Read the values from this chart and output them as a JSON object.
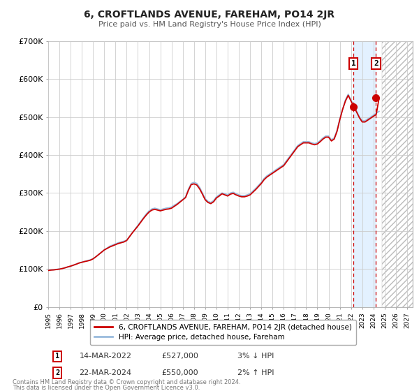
{
  "title": "6, CROFTLANDS AVENUE, FAREHAM, PO14 2JR",
  "subtitle": "Price paid vs. HM Land Registry's House Price Index (HPI)",
  "ylim": [
    0,
    700000
  ],
  "yticks": [
    0,
    100000,
    200000,
    300000,
    400000,
    500000,
    600000,
    700000
  ],
  "ytick_labels": [
    "£0",
    "£100K",
    "£200K",
    "£300K",
    "£400K",
    "£500K",
    "£600K",
    "£700K"
  ],
  "xlim_start": 1995.0,
  "xlim_end": 2027.5,
  "sale1_x": 2022.21,
  "sale1_y": 527000,
  "sale2_x": 2024.23,
  "sale2_y": 550000,
  "vline1_x": 2022.21,
  "vline2_x": 2024.23,
  "shade_start": 2022.21,
  "shade_end": 2024.23,
  "hatch_start": 2024.75,
  "hatch_end": 2027.5,
  "line_color_sale": "#cc0000",
  "line_color_hpi": "#99bbdd",
  "dot_color": "#cc0000",
  "shade_color": "#ddeeff",
  "vline_color": "#cc0000",
  "legend1_label": "6, CROFTLANDS AVENUE, FAREHAM, PO14 2JR (detached house)",
  "legend2_label": "HPI: Average price, detached house, Fareham",
  "table_row1": [
    "1",
    "14-MAR-2022",
    "£527,000",
    "3% ↓ HPI"
  ],
  "table_row2": [
    "2",
    "22-MAR-2024",
    "£550,000",
    "2% ↑ HPI"
  ],
  "footnote1": "Contains HM Land Registry data © Crown copyright and database right 2024.",
  "footnote2": "This data is licensed under the Open Government Licence v3.0.",
  "background_color": "#ffffff",
  "grid_color": "#cccccc",
  "hpi_data_x": [
    1995.0,
    1995.25,
    1995.5,
    1995.75,
    1996.0,
    1996.25,
    1996.5,
    1996.75,
    1997.0,
    1997.25,
    1997.5,
    1997.75,
    1998.0,
    1998.25,
    1998.5,
    1998.75,
    1999.0,
    1999.25,
    1999.5,
    1999.75,
    2000.0,
    2000.25,
    2000.5,
    2000.75,
    2001.0,
    2001.25,
    2001.5,
    2001.75,
    2002.0,
    2002.25,
    2002.5,
    2002.75,
    2003.0,
    2003.25,
    2003.5,
    2003.75,
    2004.0,
    2004.25,
    2004.5,
    2004.75,
    2005.0,
    2005.25,
    2005.5,
    2005.75,
    2006.0,
    2006.25,
    2006.5,
    2006.75,
    2007.0,
    2007.25,
    2007.5,
    2007.75,
    2008.0,
    2008.25,
    2008.5,
    2008.75,
    2009.0,
    2009.25,
    2009.5,
    2009.75,
    2010.0,
    2010.25,
    2010.5,
    2010.75,
    2011.0,
    2011.25,
    2011.5,
    2011.75,
    2012.0,
    2012.25,
    2012.5,
    2012.75,
    2013.0,
    2013.25,
    2013.5,
    2013.75,
    2014.0,
    2014.25,
    2014.5,
    2014.75,
    2015.0,
    2015.25,
    2015.5,
    2015.75,
    2016.0,
    2016.25,
    2016.5,
    2016.75,
    2017.0,
    2017.25,
    2017.5,
    2017.75,
    2018.0,
    2018.25,
    2018.5,
    2018.75,
    2019.0,
    2019.25,
    2019.5,
    2019.75,
    2020.0,
    2020.25,
    2020.5,
    2020.75,
    2021.0,
    2021.25,
    2021.5,
    2021.75,
    2022.0,
    2022.25,
    2022.5,
    2022.75,
    2023.0,
    2023.25,
    2023.5,
    2023.75,
    2024.0,
    2024.25,
    2024.5
  ],
  "hpi_data_y": [
    97000,
    97500,
    98000,
    99000,
    100000,
    101000,
    103000,
    105000,
    107000,
    110000,
    113000,
    116000,
    118000,
    120000,
    122000,
    124000,
    127000,
    132000,
    138000,
    144000,
    150000,
    155000,
    160000,
    163000,
    166000,
    169000,
    171000,
    173000,
    176000,
    185000,
    195000,
    205000,
    215000,
    225000,
    235000,
    245000,
    253000,
    258000,
    260000,
    258000,
    256000,
    258000,
    260000,
    261000,
    263000,
    268000,
    272000,
    278000,
    283000,
    290000,
    310000,
    325000,
    328000,
    325000,
    315000,
    300000,
    285000,
    278000,
    275000,
    280000,
    290000,
    295000,
    300000,
    298000,
    295000,
    300000,
    302000,
    298000,
    295000,
    293000,
    293000,
    295000,
    298000,
    305000,
    312000,
    320000,
    328000,
    338000,
    345000,
    350000,
    355000,
    360000,
    365000,
    370000,
    375000,
    385000,
    395000,
    405000,
    415000,
    425000,
    430000,
    435000,
    435000,
    435000,
    432000,
    430000,
    432000,
    438000,
    445000,
    450000,
    450000,
    440000,
    445000,
    465000,
    495000,
    520000,
    545000,
    560000,
    545000,
    530000,
    515000,
    500000,
    490000,
    490000,
    495000,
    500000,
    505000,
    510000,
    515000
  ],
  "sale_line_data_x": [
    1995.0,
    1995.25,
    1995.5,
    1995.75,
    1996.0,
    1996.25,
    1996.5,
    1996.75,
    1997.0,
    1997.25,
    1997.5,
    1997.75,
    1998.0,
    1998.25,
    1998.5,
    1998.75,
    1999.0,
    1999.25,
    1999.5,
    1999.75,
    2000.0,
    2000.25,
    2000.5,
    2000.75,
    2001.0,
    2001.25,
    2001.5,
    2001.75,
    2002.0,
    2002.25,
    2002.5,
    2002.75,
    2003.0,
    2003.25,
    2003.5,
    2003.75,
    2004.0,
    2004.25,
    2004.5,
    2004.75,
    2005.0,
    2005.25,
    2005.5,
    2005.75,
    2006.0,
    2006.25,
    2006.5,
    2006.75,
    2007.0,
    2007.25,
    2007.5,
    2007.75,
    2008.0,
    2008.25,
    2008.5,
    2008.75,
    2009.0,
    2009.25,
    2009.5,
    2009.75,
    2010.0,
    2010.25,
    2010.5,
    2010.75,
    2011.0,
    2011.25,
    2011.5,
    2011.75,
    2012.0,
    2012.25,
    2012.5,
    2012.75,
    2013.0,
    2013.25,
    2013.5,
    2013.75,
    2014.0,
    2014.25,
    2014.5,
    2014.75,
    2015.0,
    2015.25,
    2015.5,
    2015.75,
    2016.0,
    2016.25,
    2016.5,
    2016.75,
    2017.0,
    2017.25,
    2017.5,
    2017.75,
    2018.0,
    2018.25,
    2018.5,
    2018.75,
    2019.0,
    2019.25,
    2019.5,
    2019.75,
    2020.0,
    2020.25,
    2020.5,
    2020.75,
    2021.0,
    2021.25,
    2021.5,
    2021.75,
    2022.0,
    2022.25,
    2022.5,
    2022.75,
    2023.0,
    2023.25,
    2023.5,
    2023.75,
    2024.0,
    2024.25,
    2024.5
  ],
  "sale_line_data_y": [
    96000,
    97000,
    97500,
    98500,
    99500,
    101000,
    103000,
    105500,
    107500,
    110000,
    112500,
    115500,
    117500,
    119500,
    121000,
    123000,
    126500,
    132000,
    138000,
    144000,
    150000,
    154000,
    158000,
    161000,
    164000,
    167000,
    169000,
    171000,
    175000,
    185000,
    195000,
    204000,
    213000,
    223000,
    233000,
    242000,
    250000,
    255000,
    257000,
    255000,
    253000,
    255000,
    257000,
    258000,
    260000,
    265000,
    270000,
    276000,
    282000,
    288000,
    307000,
    322000,
    324000,
    321000,
    311000,
    297000,
    282000,
    275000,
    272000,
    277000,
    287000,
    292000,
    298000,
    295000,
    292000,
    297000,
    299000,
    295000,
    292000,
    290000,
    290000,
    292000,
    295000,
    302000,
    309000,
    317000,
    325000,
    335000,
    342000,
    347000,
    352000,
    357000,
    362000,
    367000,
    372000,
    382000,
    392000,
    402000,
    412000,
    422000,
    427000,
    432000,
    432000,
    432000,
    429000,
    427000,
    429000,
    435000,
    442000,
    447000,
    447000,
    437000,
    442000,
    462000,
    493000,
    520000,
    542000,
    557000,
    542000,
    527000,
    513000,
    498000,
    487000,
    487000,
    492000,
    497000,
    502000,
    507000,
    550000
  ]
}
